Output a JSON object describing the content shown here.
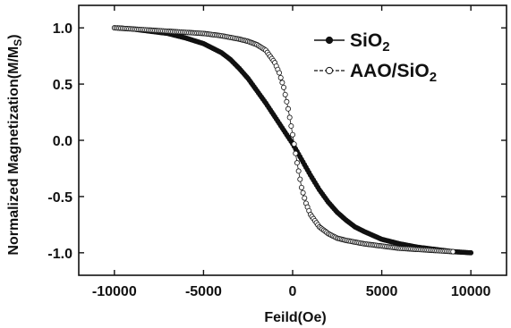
{
  "chart_data": {
    "type": "scatter",
    "title": "",
    "xlabel": "Feild(Oe)",
    "ylabel": "Normalized Magnetization(M/M",
    "ylabel_subscript": "S",
    "ylabel_close": ")",
    "xlim": [
      -12000,
      12000
    ],
    "ylim": [
      -1.2,
      1.2
    ],
    "x_ticks": [
      {
        "value": -10000,
        "label": "-10000"
      },
      {
        "value": -5000,
        "label": "-5000"
      },
      {
        "value": 0,
        "label": "0"
      },
      {
        "value": 5000,
        "label": "5000"
      },
      {
        "value": 10000,
        "label": "10000"
      }
    ],
    "y_ticks": [
      {
        "value": 1.0,
        "label": "1.0"
      },
      {
        "value": 0.5,
        "label": "0.5"
      },
      {
        "value": 0.0,
        "label": "0.0"
      },
      {
        "value": -0.5,
        "label": "-0.5"
      },
      {
        "value": -1.0,
        "label": "-1.0"
      }
    ],
    "grid": false,
    "legend_position": "top-right",
    "series": [
      {
        "name": "SiO",
        "name_subscript": "2",
        "marker": "filled-circle",
        "color": "#111111",
        "x": [
          -9800,
          -9000,
          -8000,
          -7000,
          -6000,
          -5000,
          -4000,
          -3500,
          -3000,
          -2500,
          -2000,
          -1500,
          -1000,
          -500,
          0,
          500,
          1000,
          1500,
          2000,
          2500,
          3000,
          3500,
          4000,
          5000,
          6000,
          7000,
          8000,
          9000,
          10000
        ],
        "y": [
          1.0,
          0.99,
          0.97,
          0.95,
          0.91,
          0.86,
          0.78,
          0.72,
          0.64,
          0.55,
          0.44,
          0.33,
          0.21,
          0.09,
          -0.03,
          -0.17,
          -0.31,
          -0.44,
          -0.55,
          -0.64,
          -0.71,
          -0.77,
          -0.81,
          -0.88,
          -0.92,
          -0.95,
          -0.97,
          -0.99,
          -1.0
        ]
      },
      {
        "name": "AAO/SiO",
        "name_subscript": "2",
        "marker": "open-circle",
        "color": "#111111",
        "x": [
          -10000,
          -9000,
          -8000,
          -7000,
          -6000,
          -5000,
          -4000,
          -3000,
          -2500,
          -2000,
          -1500,
          -1000,
          -750,
          -500,
          -250,
          0,
          250,
          500,
          750,
          1000,
          1500,
          2000,
          2500,
          3000,
          4000,
          5000,
          6000,
          7000,
          8000,
          9000
        ],
        "y": [
          1.0,
          0.99,
          0.98,
          0.97,
          0.96,
          0.95,
          0.93,
          0.9,
          0.88,
          0.85,
          0.8,
          0.69,
          0.6,
          0.47,
          0.28,
          0.05,
          -0.2,
          -0.42,
          -0.56,
          -0.66,
          -0.77,
          -0.83,
          -0.87,
          -0.89,
          -0.92,
          -0.94,
          -0.96,
          -0.97,
          -0.98,
          -0.99
        ]
      }
    ]
  }
}
